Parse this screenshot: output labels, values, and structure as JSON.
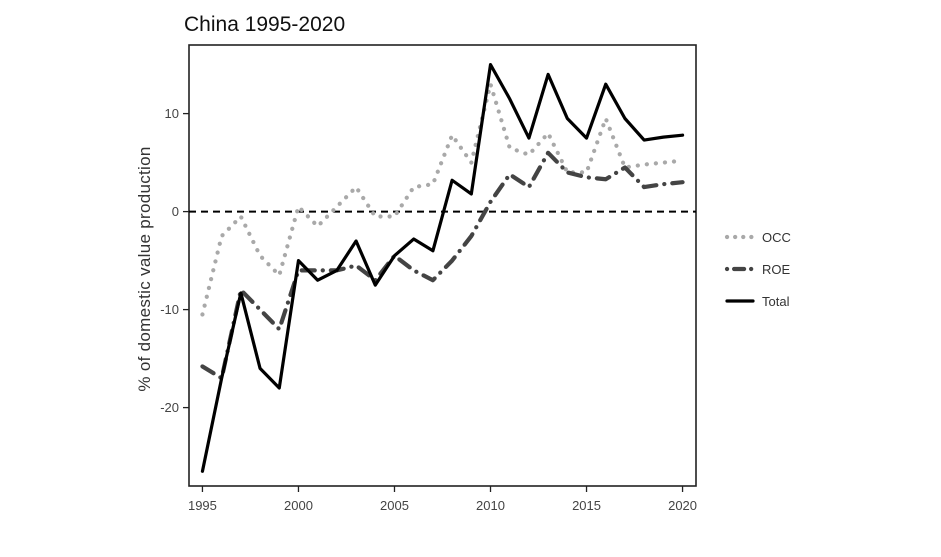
{
  "chart_data": {
    "type": "line",
    "title": "China 1995-2020",
    "xlabel": "",
    "ylabel": "% of domestic value production",
    "xlim": [
      1994.3,
      2020.7
    ],
    "ylim": [
      -28,
      17
    ],
    "x_ticks": [
      1995,
      2000,
      2005,
      2010,
      2015,
      2020
    ],
    "y_ticks": [
      -20,
      -10,
      0,
      10
    ],
    "reference_line": {
      "y": 0,
      "style": "dashed"
    },
    "grid": false,
    "legend_position": "right",
    "x": [
      1995,
      1996,
      1997,
      1998,
      1999,
      2000,
      2001,
      2002,
      2003,
      2004,
      2005,
      2006,
      2007,
      2008,
      2009,
      2010,
      2011,
      2012,
      2013,
      2014,
      2015,
      2016,
      2017,
      2018,
      2019,
      2020
    ],
    "series": [
      {
        "name": "OCC",
        "style": "dotted",
        "color": "#a9a9a9",
        "values": [
          -10.5,
          -2.5,
          -0.5,
          -4.5,
          -6.5,
          0.5,
          -1.5,
          0.5,
          2.5,
          -0.5,
          -0.5,
          2.5,
          2.8,
          7.8,
          5.0,
          13.0,
          6.5,
          5.8,
          8.0,
          4.0,
          4.0,
          9.5,
          4.5,
          4.8,
          5.0,
          5.2
        ]
      },
      {
        "name": "ROE",
        "style": "dashdot",
        "color": "#444444",
        "values": [
          -15.8,
          -17.0,
          -8.0,
          -10.0,
          -12.0,
          -6.0,
          -6.0,
          -6.0,
          -5.5,
          -7.0,
          -4.5,
          -6.0,
          -7.0,
          -5.0,
          -2.5,
          1.0,
          3.8,
          2.5,
          6.0,
          4.0,
          3.5,
          3.3,
          4.5,
          2.5,
          2.8,
          3.0
        ]
      },
      {
        "name": "Total",
        "style": "solid",
        "color": "#000000",
        "values": [
          -26.5,
          -17.0,
          -8.3,
          -16.0,
          -18.0,
          -5.0,
          -7.0,
          -6.0,
          -3.0,
          -7.5,
          -4.5,
          -2.8,
          -4.0,
          3.2,
          1.8,
          15.0,
          11.5,
          7.5,
          14.0,
          9.5,
          7.5,
          13.0,
          9.5,
          7.3,
          7.6,
          7.8
        ]
      }
    ]
  }
}
